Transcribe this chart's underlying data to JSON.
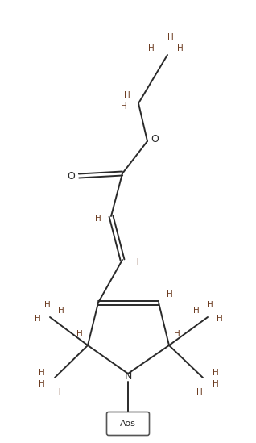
{
  "bg_color": "#ffffff",
  "bond_color": "#2a2a2a",
  "H_color": "#6b3a1f",
  "N_color": "#2a2a2a",
  "O_color": "#2a2a2a",
  "box_color": "#555555",
  "lw": 1.4,
  "fig_width": 3.18,
  "fig_height": 5.49,
  "dpi": 100,
  "xlim": [
    0,
    318
  ],
  "ylim": [
    0,
    549
  ]
}
